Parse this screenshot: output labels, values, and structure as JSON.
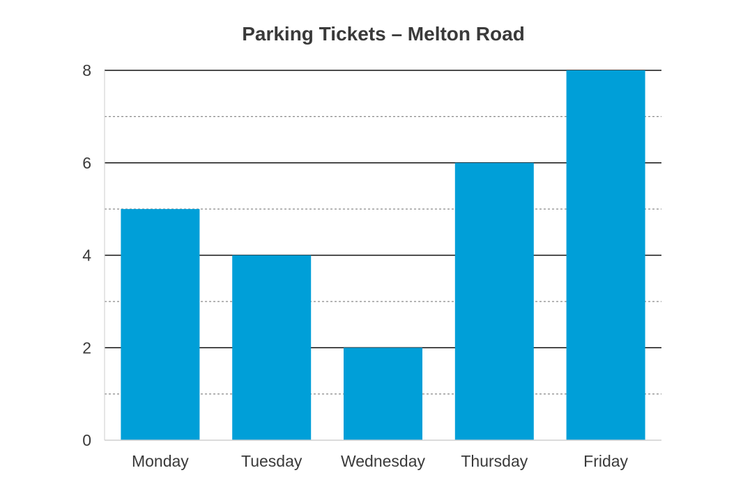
{
  "chart_data": {
    "type": "bar",
    "title": "Parking Tickets – Melton Road",
    "xlabel": "",
    "ylabel": "",
    "categories": [
      "Monday",
      "Tuesday",
      "Wednesday",
      "Thursday",
      "Friday"
    ],
    "values": [
      5,
      4,
      2,
      6,
      8
    ],
    "ylim": [
      0,
      8
    ],
    "major_ticks": [
      0,
      2,
      4,
      6,
      8
    ],
    "minor_gridlines": [
      1,
      3,
      5,
      7
    ],
    "grid": true,
    "legend": "none",
    "colors": {
      "bar": "#009fd8",
      "major_grid": "#111111",
      "minor_grid": "#8a8a8a",
      "axis_text": "#3a3a3a",
      "title_text": "#3a3a3a"
    }
  }
}
